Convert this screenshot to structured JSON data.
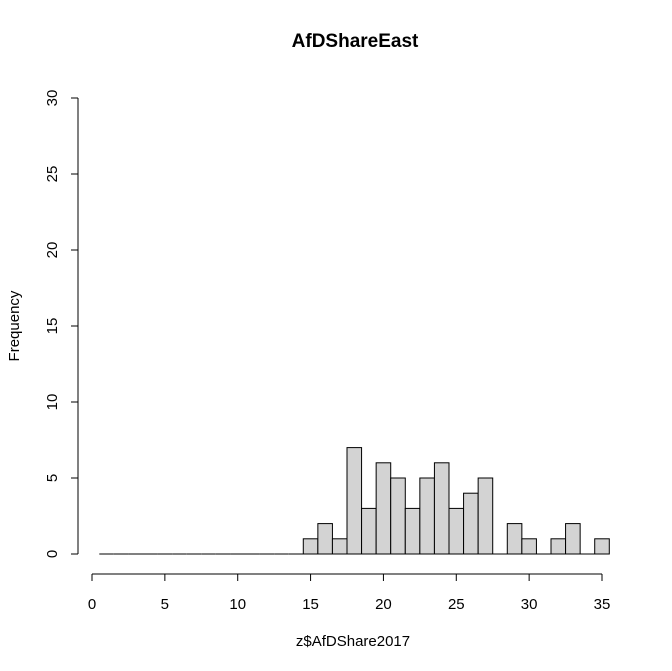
{
  "chart_data": {
    "type": "bar",
    "title": "AfDShareEast",
    "xlabel": "z$AfDShare2017",
    "ylabel": "Frequency",
    "xlim": [
      0,
      35
    ],
    "ylim": [
      0,
      30
    ],
    "bin_width": 1,
    "x_ticks": [
      "0",
      "5",
      "10",
      "15",
      "20",
      "25",
      "30",
      "35"
    ],
    "y_ticks": [
      "0",
      "5",
      "10",
      "15",
      "20",
      "25",
      "30"
    ],
    "bins": [
      {
        "start": 0.5,
        "end": 1.5,
        "count": 0
      },
      {
        "start": 1.5,
        "end": 2.5,
        "count": 0
      },
      {
        "start": 2.5,
        "end": 3.5,
        "count": 0
      },
      {
        "start": 3.5,
        "end": 4.5,
        "count": 0
      },
      {
        "start": 4.5,
        "end": 5.5,
        "count": 0
      },
      {
        "start": 5.5,
        "end": 6.5,
        "count": 0
      },
      {
        "start": 6.5,
        "end": 7.5,
        "count": 0
      },
      {
        "start": 7.5,
        "end": 8.5,
        "count": 0
      },
      {
        "start": 8.5,
        "end": 9.5,
        "count": 0
      },
      {
        "start": 9.5,
        "end": 10.5,
        "count": 0
      },
      {
        "start": 10.5,
        "end": 11.5,
        "count": 0
      },
      {
        "start": 11.5,
        "end": 12.5,
        "count": 0
      },
      {
        "start": 12.5,
        "end": 13.5,
        "count": 0
      },
      {
        "start": 13.5,
        "end": 14.5,
        "count": 0
      },
      {
        "start": 14.5,
        "end": 15.5,
        "count": 1
      },
      {
        "start": 15.5,
        "end": 16.5,
        "count": 2
      },
      {
        "start": 16.5,
        "end": 17.5,
        "count": 1
      },
      {
        "start": 17.5,
        "end": 18.5,
        "count": 7
      },
      {
        "start": 18.5,
        "end": 19.5,
        "count": 3
      },
      {
        "start": 19.5,
        "end": 20.5,
        "count": 6
      },
      {
        "start": 20.5,
        "end": 21.5,
        "count": 5
      },
      {
        "start": 21.5,
        "end": 22.5,
        "count": 3
      },
      {
        "start": 22.5,
        "end": 23.5,
        "count": 5
      },
      {
        "start": 23.5,
        "end": 24.5,
        "count": 6
      },
      {
        "start": 24.5,
        "end": 25.5,
        "count": 3
      },
      {
        "start": 25.5,
        "end": 26.5,
        "count": 4
      },
      {
        "start": 26.5,
        "end": 27.5,
        "count": 5
      },
      {
        "start": 27.5,
        "end": 28.5,
        "count": 0
      },
      {
        "start": 28.5,
        "end": 29.5,
        "count": 2
      },
      {
        "start": 29.5,
        "end": 30.5,
        "count": 1
      },
      {
        "start": 30.5,
        "end": 31.5,
        "count": 0
      },
      {
        "start": 31.5,
        "end": 32.5,
        "count": 1
      },
      {
        "start": 32.5,
        "end": 33.5,
        "count": 2
      },
      {
        "start": 33.5,
        "end": 34.5,
        "count": 0
      },
      {
        "start": 34.5,
        "end": 35.5,
        "count": 1
      }
    ],
    "bar_fill": "#d3d3d3",
    "bar_stroke": "#000000"
  }
}
